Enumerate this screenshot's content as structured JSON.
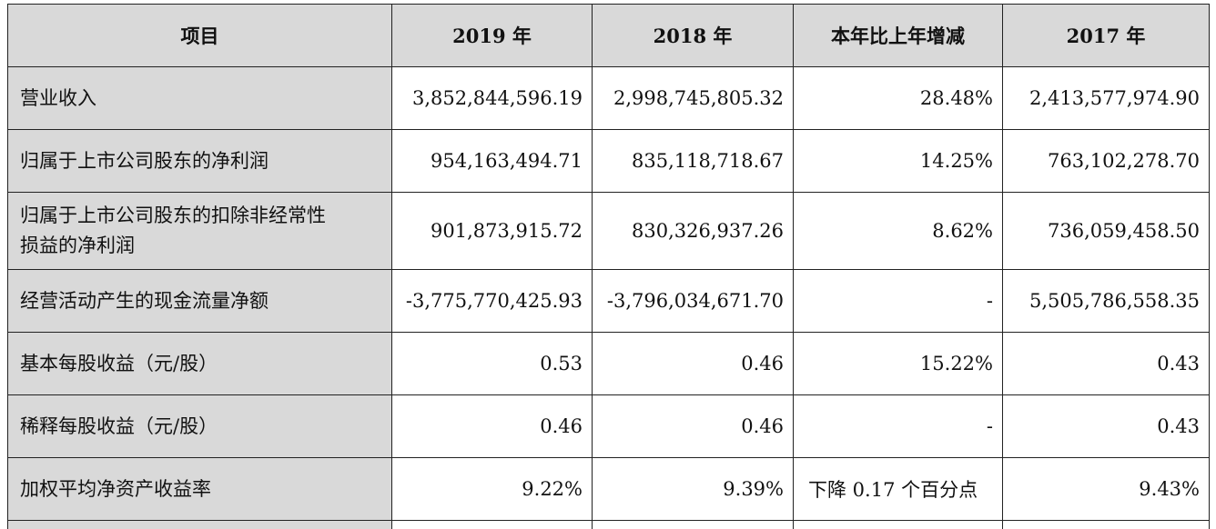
{
  "table": {
    "headers": [
      "项目",
      "2019 年",
      "2018 年",
      "本年比上年增减",
      "2017 年"
    ],
    "rows": [
      {
        "label": "营业收入",
        "y2019": "3,852,844,596.19",
        "y2018": "2,998,745,805.32",
        "change": "28.48%",
        "y2017": "2,413,577,974.90"
      },
      {
        "label": "归属于上市公司股东的净利润",
        "y2019": "954,163,494.71",
        "y2018": "835,118,718.67",
        "change": "14.25%",
        "y2017": "763,102,278.70"
      },
      {
        "label_line1": "归属于上市公司股东的扣除非经常性",
        "label_line2": "损益的净利润",
        "y2019": "901,873,915.72",
        "y2018": "830,326,937.26",
        "change": "8.62%",
        "y2017": "736,059,458.50"
      },
      {
        "label": "经营活动产生的现金流量净额",
        "y2019": "-3,775,770,425.93",
        "y2018": "-3,796,034,671.70",
        "change": "-",
        "y2017": "5,505,786,558.35"
      },
      {
        "label": "基本每股收益（元/股）",
        "y2019": "0.53",
        "y2018": "0.46",
        "change": "15.22%",
        "y2017": "0.43"
      },
      {
        "label": "稀释每股收益（元/股）",
        "y2019": "0.46",
        "y2018": "0.46",
        "change": "-",
        "y2017": "0.43"
      },
      {
        "label": "加权平均净资产收益率",
        "y2019": "9.22%",
        "y2018": "9.39%",
        "change": "下降 0.17 个百分点",
        "y2017": "9.43%"
      }
    ]
  }
}
